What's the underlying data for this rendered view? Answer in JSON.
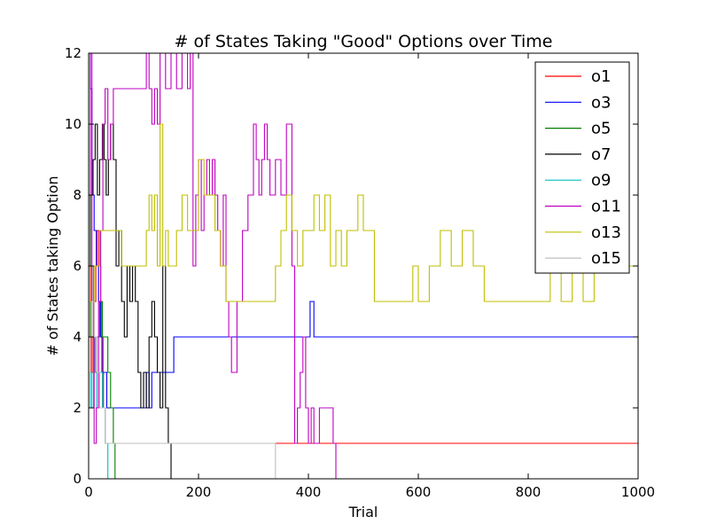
{
  "chart_data": {
    "type": "line",
    "title": "# of States Taking \"Good\" Options over Time",
    "xlabel": "Trial",
    "ylabel": "# of States taking Option",
    "xlim": [
      0,
      1000
    ],
    "ylim": [
      0,
      12
    ],
    "xticks": [
      0,
      200,
      400,
      600,
      800,
      1000
    ],
    "yticks": [
      0,
      2,
      4,
      6,
      8,
      10,
      12
    ],
    "grid": false,
    "legend_position": "top-right",
    "series": [
      {
        "name": "o1",
        "color": "#ff0000",
        "x": [
          0,
          3,
          5,
          8,
          10,
          13,
          15,
          18,
          22,
          24,
          27,
          30,
          40,
          1000
        ],
        "y": [
          6,
          4,
          3,
          4,
          5,
          6,
          7,
          6,
          5,
          3,
          2,
          1,
          1,
          1
        ]
      },
      {
        "name": "o3",
        "color": "#0000ff",
        "x": [
          0,
          3,
          6,
          10,
          14,
          18,
          22,
          26,
          30,
          33,
          36,
          40,
          80,
          85,
          100,
          105,
          110,
          115,
          150,
          155,
          360,
          400,
          403,
          407,
          410,
          1000
        ],
        "y": [
          12,
          11,
          8,
          7,
          6,
          5,
          4,
          3,
          3,
          2,
          2,
          2,
          2,
          2,
          2,
          3,
          2,
          3,
          3,
          4,
          4,
          4,
          5,
          5,
          4,
          4
        ]
      },
      {
        "name": "o5",
        "color": "#008000",
        "x": [
          0,
          3,
          6,
          9,
          12,
          15,
          20,
          25,
          30,
          35,
          40,
          45,
          48,
          1000
        ],
        "y": [
          4,
          5,
          6,
          4,
          3,
          4,
          5,
          4,
          4,
          3,
          2,
          1,
          0,
          0
        ]
      },
      {
        "name": "o7",
        "color": "#000000",
        "x": [
          0,
          3,
          8,
          12,
          16,
          20,
          25,
          28,
          32,
          36,
          40,
          45,
          50,
          55,
          60,
          65,
          70,
          75,
          80,
          85,
          90,
          95,
          100,
          105,
          110,
          115,
          120,
          125,
          130,
          135,
          140,
          145,
          150,
          160,
          1000
        ],
        "y": [
          6,
          8,
          9,
          10,
          8,
          9,
          10,
          9,
          8,
          9,
          10,
          9,
          6,
          7,
          5,
          4,
          6,
          5,
          6,
          5,
          3,
          2,
          3,
          2,
          4,
          5,
          4,
          3,
          2,
          6,
          2,
          1,
          0,
          0,
          0
        ]
      },
      {
        "name": "o9",
        "color": "#00bfbf",
        "x": [
          0,
          3,
          6,
          9,
          12,
          15,
          20,
          25,
          30,
          35,
          1000
        ],
        "y": [
          2,
          3,
          2,
          3,
          4,
          2,
          3,
          2,
          1,
          0,
          0
        ]
      },
      {
        "name": "o11",
        "color": "#bf00bf",
        "x": [
          0,
          3,
          6,
          10,
          14,
          18,
          22,
          26,
          30,
          35,
          40,
          45,
          50,
          60,
          70,
          80,
          90,
          100,
          105,
          110,
          115,
          120,
          125,
          130,
          140,
          150,
          160,
          170,
          180,
          185,
          190,
          195,
          200,
          205,
          210,
          215,
          220,
          225,
          230,
          235,
          240,
          245,
          250,
          255,
          260,
          270,
          280,
          290,
          300,
          305,
          310,
          315,
          320,
          325,
          330,
          340,
          350,
          360,
          370,
          375,
          380,
          385,
          390,
          395,
          400,
          405,
          410,
          420,
          430,
          440,
          445,
          450,
          1000
        ],
        "y": [
          8,
          12,
          4,
          1,
          2,
          5,
          7,
          10,
          11,
          9,
          10,
          11,
          11,
          11,
          11,
          11,
          11,
          11,
          12,
          11,
          10,
          11,
          10,
          12,
          11,
          12,
          11,
          12,
          11,
          12,
          6,
          8,
          9,
          7,
          8,
          9,
          8,
          9,
          8,
          7,
          6,
          8,
          5,
          4,
          3,
          5,
          7,
          8,
          10,
          9,
          8,
          9,
          10,
          9,
          8,
          9,
          8,
          10,
          6,
          1,
          2,
          3,
          4,
          2,
          1,
          2,
          1,
          2,
          2,
          2,
          1,
          0,
          0
        ]
      },
      {
        "name": "o13",
        "color": "#bfbf00",
        "x": [
          0,
          10,
          20,
          30,
          40,
          50,
          60,
          70,
          80,
          90,
          100,
          105,
          110,
          115,
          120,
          125,
          130,
          135,
          140,
          145,
          150,
          160,
          170,
          180,
          190,
          200,
          210,
          220,
          230,
          240,
          250,
          260,
          270,
          280,
          290,
          300,
          310,
          320,
          330,
          340,
          350,
          360,
          370,
          380,
          390,
          400,
          410,
          420,
          430,
          440,
          450,
          460,
          470,
          480,
          490,
          500,
          510,
          520,
          530,
          550,
          570,
          590,
          600,
          620,
          640,
          660,
          680,
          700,
          720,
          740,
          760,
          780,
          800,
          820,
          840,
          860,
          880,
          900,
          920,
          940,
          960,
          980,
          1000
        ],
        "y": [
          5,
          6,
          7,
          7,
          7,
          7,
          6,
          6,
          6,
          6,
          6,
          7,
          8,
          7,
          8,
          6,
          10,
          6,
          7,
          6,
          6,
          7,
          8,
          7,
          7,
          9,
          8,
          8,
          7,
          6,
          5,
          5,
          5,
          5,
          5,
          5,
          5,
          5,
          5,
          6,
          7,
          8,
          7,
          6,
          7,
          7,
          8,
          7,
          8,
          6,
          7,
          6,
          7,
          7,
          8,
          7,
          7,
          5,
          5,
          5,
          5,
          6,
          5,
          6,
          7,
          6,
          7,
          6,
          5,
          5,
          5,
          5,
          5,
          5,
          6,
          5,
          6,
          5,
          6,
          6,
          7,
          6,
          6
        ]
      },
      {
        "name": "o15",
        "color": "#bfbfbf",
        "x": [
          0,
          3,
          6,
          10,
          15,
          20,
          30,
          40,
          338,
          340,
          1000
        ],
        "y": [
          3,
          4,
          5,
          4,
          3,
          2,
          1,
          1,
          1,
          0,
          0
        ]
      }
    ]
  }
}
